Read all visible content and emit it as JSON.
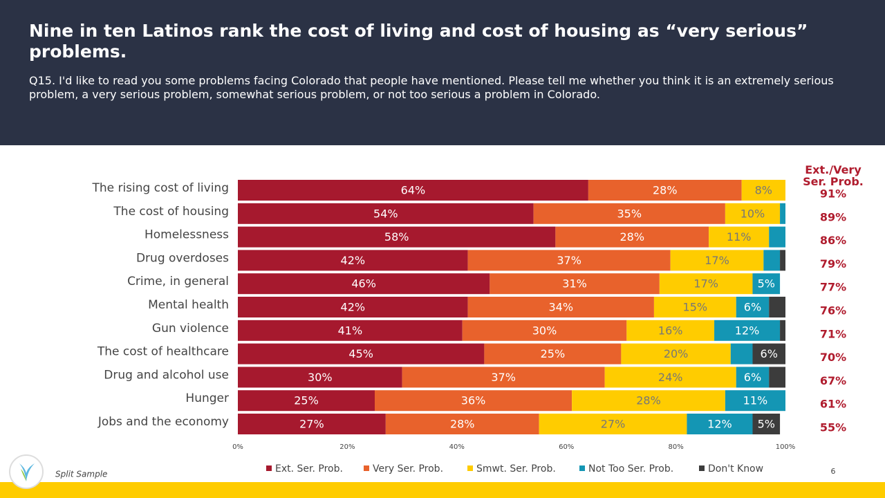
{
  "header": {
    "title": "Nine in ten Latinos rank the cost of living and cost of housing as “very serious” problems.",
    "subtitle": "Q15. I'd like to read you some problems facing Colorado that people have mentioned.  Please tell me whether you think it is an extremely serious problem, a very serious problem, somewhat serious problem, or not too serious a problem in Colorado."
  },
  "chart_data": {
    "type": "stacked_bar_horizontal",
    "categories": [
      "The rising cost of living",
      "The cost of housing",
      "Homelessness",
      "Drug overdoses",
      "Crime, in general",
      "Mental health",
      "Gun violence",
      "The cost of healthcare",
      "Drug and alcohol use",
      "Hunger",
      "Jobs and the economy"
    ],
    "series": [
      {
        "name": "Ext. Ser. Prob.",
        "color": "#a6192e",
        "values": [
          64,
          54,
          58,
          42,
          46,
          42,
          41,
          45,
          30,
          25,
          27
        ],
        "value_labels": [
          "64%",
          "54%",
          "58%",
          "42%",
          "46%",
          "42%",
          "41%",
          "45%",
          "30%",
          "25%",
          "27%"
        ]
      },
      {
        "name": "Very Ser. Prob.",
        "color": "#e8622c",
        "values": [
          28,
          35,
          28,
          37,
          31,
          34,
          30,
          25,
          37,
          36,
          28
        ],
        "value_labels": [
          "28%",
          "35%",
          "28%",
          "37%",
          "31%",
          "34%",
          "30%",
          "25%",
          "37%",
          "36%",
          "28%"
        ]
      },
      {
        "name": "Smwt. Ser. Prob.",
        "color": "#ffcc00",
        "values": [
          8,
          10,
          11,
          17,
          17,
          15,
          16,
          20,
          24,
          28,
          27
        ],
        "value_labels": [
          "8%",
          "10%",
          "11%",
          "17%",
          "17%",
          "15%",
          "16%",
          "20%",
          "24%",
          "28%",
          "27%"
        ]
      },
      {
        "name": "Not Too Ser. Prob.",
        "color": "#1496b4",
        "values": [
          0,
          1,
          3,
          3,
          5,
          6,
          12,
          4,
          6,
          11,
          12
        ],
        "value_labels": [
          null,
          null,
          null,
          null,
          "5%",
          "6%",
          "12%",
          null,
          "6%",
          "11%",
          "12%"
        ]
      },
      {
        "name": "Don't Know",
        "color": "#3c3c3c",
        "values": [
          0,
          0,
          0,
          1,
          0,
          3,
          1,
          6,
          3,
          0,
          5
        ],
        "value_labels": [
          null,
          null,
          null,
          null,
          null,
          null,
          null,
          "6%",
          null,
          null,
          "5%"
        ]
      }
    ],
    "xlim": [
      0,
      100
    ],
    "xticks": [
      {
        "value": 0,
        "label": "0%"
      },
      {
        "value": 20,
        "label": "20%"
      },
      {
        "value": 40,
        "label": "40%"
      },
      {
        "value": 60,
        "label": "60%"
      },
      {
        "value": 80,
        "label": "80%"
      },
      {
        "value": 100,
        "label": "100%"
      }
    ],
    "legend": "bottom",
    "net_title": "Ext./Very Ser. Prob.",
    "net_values": [
      91,
      89,
      86,
      79,
      77,
      76,
      71,
      70,
      67,
      61,
      55
    ],
    "net_labels": [
      "91%",
      "89%",
      "86%",
      "79%",
      "77%",
      "76%",
      "71%",
      "70%",
      "67%",
      "61%",
      "55%"
    ]
  },
  "footer": {
    "note": "Split Sample",
    "page": "6"
  }
}
